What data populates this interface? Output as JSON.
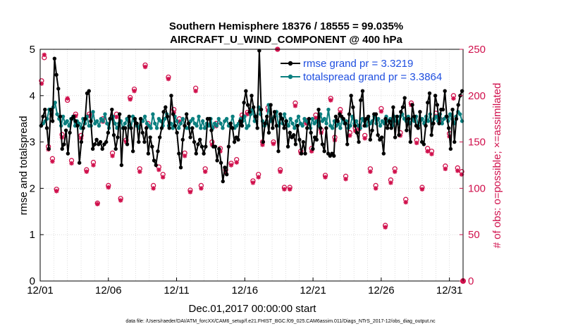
{
  "colors": {
    "rmse": "#000000",
    "spread": "#0a7f7f",
    "obs": "#d0104c",
    "legend_text": "#1f4fe0",
    "grid": "#c8c8c8"
  },
  "footer_text": "data file: /Users/raeder/DAI/ATM_forcXX/CAM6_setup/f.e21.FHIST_BGC.f09_025.CAM6assim.011/Diags_NTrS_2017-12/obs_diag_output.nc",
  "chart_data": {
    "type": "line",
    "title": "Southern Hemisphere 18376 / 18555 = 99.035%",
    "subtitle": "AIRCRAFT_U_WIND_COMPONENT @ 400 hPa",
    "xlabel": "Dec.01,2017 00:00:00 start",
    "ylabel": "rmse and totalspread",
    "y2label": "# of obs: o=possible; ×=assimilated",
    "xlim": [
      0,
      31
    ],
    "ylim": [
      0,
      5
    ],
    "y2lim": [
      0,
      250
    ],
    "xticks": [
      0,
      5,
      10,
      15,
      20,
      25,
      30
    ],
    "xticklabels": [
      "12/01",
      "12/06",
      "12/11",
      "12/16",
      "12/21",
      "12/26",
      "12/31"
    ],
    "yticks": [
      0,
      1,
      2,
      3,
      4,
      5
    ],
    "yticklabels": [
      "0",
      "1",
      "2",
      "3",
      "4",
      "5"
    ],
    "y2ticks": [
      0,
      50,
      100,
      150,
      200,
      250
    ],
    "y2ticklabels": [
      "0",
      "50",
      "100",
      "150",
      "200",
      "250"
    ],
    "grid": true,
    "legend_position": "top-right",
    "series": [
      {
        "name": "rmse grand pr = 3.3219",
        "axis": "left",
        "marker": "dot",
        "values": [
          3.35,
          3.55,
          3.7,
          3.3,
          2.85,
          3.7,
          3.45,
          4.8,
          4.45,
          4.15,
          3.55,
          2.85,
          2.95,
          3.25,
          2.75,
          3.2,
          3.5,
          3.55,
          3.45,
          3.35,
          2.55,
          3.0,
          3.3,
          3.5,
          4.05,
          4.1,
          3.45,
          2.85,
          2.95,
          3.05,
          2.95,
          3.0,
          2.85,
          2.95,
          3.0,
          3.2,
          3.5,
          3.7,
          3.15,
          2.85,
          3.1,
          3.6,
          2.5,
          3.3,
          3.3,
          2.95,
          3.55,
          3.3,
          2.8,
          3.5,
          3.4,
          3.0,
          3.5,
          3.2,
          3.0,
          3.3,
          2.75,
          3.1,
          2.9,
          2.6,
          2.5,
          2.8,
          3.1,
          3.3,
          3.65,
          3.75,
          3.55,
          3.3,
          4.0,
          3.6,
          3.35,
          3.2,
          2.75,
          2.45,
          3.05,
          3.35,
          3.6,
          3.4,
          3.1,
          3.3,
          3.0,
          2.75,
          2.95,
          3.05,
          2.9,
          2.75,
          2.9,
          3.5,
          3.5,
          3.25,
          2.9,
          2.9,
          2.6,
          2.85,
          2.55,
          2.15,
          2.45,
          2.3,
          2.9,
          3.4,
          3.3,
          3.0,
          3.1,
          3.05,
          3.45,
          3.35,
          3.85,
          4.1,
          3.8,
          3.65,
          4.0,
          3.75,
          3.55,
          3.3,
          4.97,
          3.7,
          3.0,
          3.4,
          3.55,
          3.2,
          3.8,
          3.3,
          3.65,
          3.35,
          2.8,
          3.6,
          3.5,
          3.3,
          3.45,
          2.9,
          3.2,
          3.1,
          3.15,
          2.95,
          3.35,
          3.05,
          2.75,
          3.0,
          2.75,
          3.3,
          3.5,
          3.2,
          2.85,
          3.1,
          3.05,
          3.7,
          3.3,
          2.95,
          2.8,
          3.3,
          2.75,
          2.7,
          2.75,
          2.7,
          3.55,
          3.45,
          3.6,
          3.55,
          3.5,
          3.4,
          2.95,
          3.6,
          4.0,
          3.75,
          3.35,
          3.2,
          3.0,
          3.9,
          4.1,
          3.35,
          3.5,
          3.55,
          3.05,
          3.25,
          3.6,
          3.6,
          3.15,
          3.05,
          3.1,
          2.75,
          3.5,
          3.3,
          3.45,
          3.3,
          3.75,
          3.1,
          3.55,
          3.15,
          3.65,
          3.75,
          3.95,
          3.25,
          3.5,
          3.0,
          3.8,
          3.55,
          3.35,
          3.3,
          3.65,
          3.0,
          2.95,
          3.35,
          3.85,
          4.05,
          3.15,
          3.4,
          4.0,
          3.8,
          3.4,
          3.7,
          3.7,
          4.1,
          3.55,
          3.3,
          2.85,
          3.7,
          3.0,
          3.5,
          3.8,
          4.0,
          4.1
        ]
      },
      {
        "name": "totalspread grand pr = 3.3864",
        "axis": "left",
        "marker": "dot",
        "values": [
          3.35,
          3.4,
          3.45,
          3.5,
          3.7,
          3.6,
          3.75,
          3.85,
          3.6,
          3.5,
          3.35,
          3.55,
          3.4,
          3.45,
          3.35,
          3.5,
          3.55,
          3.35,
          3.45,
          3.4,
          3.3,
          3.5,
          3.4,
          3.55,
          3.35,
          3.35,
          3.65,
          3.4,
          3.45,
          3.35,
          3.5,
          3.45,
          3.6,
          3.4,
          3.3,
          3.5,
          3.55,
          3.4,
          3.3,
          3.4,
          3.45,
          3.3,
          3.4,
          3.5,
          3.35,
          3.3,
          3.55,
          3.45,
          3.35,
          3.3,
          3.5,
          3.45,
          3.55,
          3.4,
          3.35,
          3.3,
          3.6,
          3.4,
          3.3,
          3.5,
          3.45,
          3.35,
          3.5,
          3.6,
          3.35,
          3.4,
          3.3,
          3.55,
          3.45,
          3.3,
          3.4,
          3.5,
          3.35,
          3.3,
          3.3,
          3.45,
          3.5,
          3.4,
          3.35,
          3.55,
          3.3,
          3.45,
          3.3,
          3.4,
          3.35,
          3.5,
          3.3,
          3.4,
          3.35,
          3.5,
          3.4,
          3.3,
          3.45,
          3.5,
          3.35,
          3.4,
          3.55,
          3.3,
          3.35,
          3.4,
          3.5,
          3.45,
          3.55,
          3.3,
          3.35,
          3.6,
          3.7,
          3.45,
          3.55,
          3.75,
          3.6,
          3.45,
          3.35,
          3.4,
          3.8,
          3.45,
          3.5,
          3.55,
          3.65,
          3.35,
          3.55,
          3.4,
          3.6,
          3.45,
          3.35,
          3.5,
          3.4,
          3.3,
          3.45,
          3.55,
          3.4,
          3.35,
          3.5,
          3.45,
          3.4,
          3.3,
          3.5,
          3.4,
          3.45,
          3.35,
          3.6,
          3.45,
          3.5,
          3.4,
          3.7,
          3.35,
          3.3,
          3.45,
          3.35,
          3.4,
          3.3,
          3.5,
          3.4,
          3.45,
          3.3,
          3.35,
          3.55,
          3.4,
          3.45,
          3.35,
          3.3,
          3.5,
          3.45,
          3.35,
          3.5,
          3.4,
          3.45,
          3.55,
          3.4,
          3.5,
          3.35,
          3.45,
          3.4,
          3.55,
          3.45,
          3.5,
          3.35,
          3.55,
          3.45,
          3.4,
          3.55,
          3.6,
          3.5,
          3.45,
          3.55,
          3.4,
          3.5,
          3.45,
          3.55,
          3.35,
          3.45,
          3.5,
          3.4,
          3.55,
          3.45,
          3.6,
          3.4,
          3.5,
          3.55,
          3.45,
          3.6,
          3.4,
          3.5,
          3.55,
          3.45,
          3.6,
          3.5,
          3.4,
          3.55,
          3.65,
          3.6,
          3.45
        ]
      }
    ],
    "obs_counts": {
      "axis": "right",
      "x": [
        0.1,
        0.3,
        0.6,
        0.9,
        1.2,
        1.6,
        2.0,
        2.3,
        2.6,
        3.0,
        3.4,
        3.6,
        3.9,
        4.2,
        4.6,
        5.0,
        5.3,
        5.6,
        5.9,
        6.3,
        6.6,
        6.9,
        7.3,
        7.7,
        7.9,
        8.3,
        8.7,
        9.0,
        9.4,
        9.8,
        10.2,
        10.6,
        11.0,
        11.4,
        11.8,
        12.1,
        12.6,
        12.9,
        13.2,
        13.6,
        14.0,
        14.4,
        14.8,
        15.2,
        15.6,
        16.0,
        16.3,
        16.7,
        17.1,
        17.4,
        17.6,
        17.9,
        18.3,
        18.7,
        19.1,
        19.5,
        19.9,
        20.2,
        20.6,
        20.9,
        21.3,
        21.6,
        22.0,
        22.4,
        22.7,
        23.1,
        23.4,
        23.8,
        24.2,
        24.6,
        25.0,
        25.3,
        25.7,
        26.0,
        26.4,
        26.8,
        27.2,
        27.6,
        28.0,
        28.4,
        28.7,
        29.0,
        29.3,
        29.7,
        30.0,
        30.3,
        30.6,
        30.9
      ],
      "possible": [
        216,
        241,
        145,
        132,
        99,
        158,
        195,
        130,
        180,
        157,
        120,
        180,
        128,
        84,
        175,
        103,
        138,
        180,
        89,
        152,
        198,
        207,
        121,
        233,
        170,
        103,
        123,
        115,
        220,
        185,
        175,
        138,
        98,
        208,
        103,
        121,
        150,
        170,
        143,
        120,
        127,
        131,
        179,
        182,
        108,
        115,
        150,
        187,
        150,
        250,
        120,
        101,
        101,
        192,
        140,
        173,
        143,
        179,
        163,
        114,
        197,
        155,
        185,
        113,
        160,
        165,
        167,
        157,
        121,
        103,
        186,
        60,
        109,
        121,
        160,
        88,
        192,
        152,
        101,
        143,
        140,
        181,
        175,
        124,
        159,
        200,
        122,
        118
      ],
      "assimilated": [
        213,
        244,
        142,
        129,
        97,
        155,
        197,
        127,
        178,
        154,
        118,
        178,
        125,
        83,
        172,
        101,
        135,
        177,
        87,
        150,
        196,
        205,
        118,
        231,
        167,
        100,
        120,
        112,
        218,
        182,
        172,
        135,
        96,
        205,
        100,
        118,
        147,
        167,
        140,
        117,
        125,
        128,
        176,
        180,
        106,
        112,
        147,
        184,
        148,
        250,
        118,
        99,
        99,
        189,
        138,
        170,
        140,
        176,
        160,
        112,
        195,
        152,
        182,
        110,
        157,
        162,
        164,
        154,
        118,
        100,
        183,
        58,
        106,
        118,
        157,
        85,
        190,
        149,
        99,
        140,
        137,
        178,
        173,
        121,
        156,
        197,
        119,
        115
      ],
      "endpoint_possible": 0
    }
  }
}
